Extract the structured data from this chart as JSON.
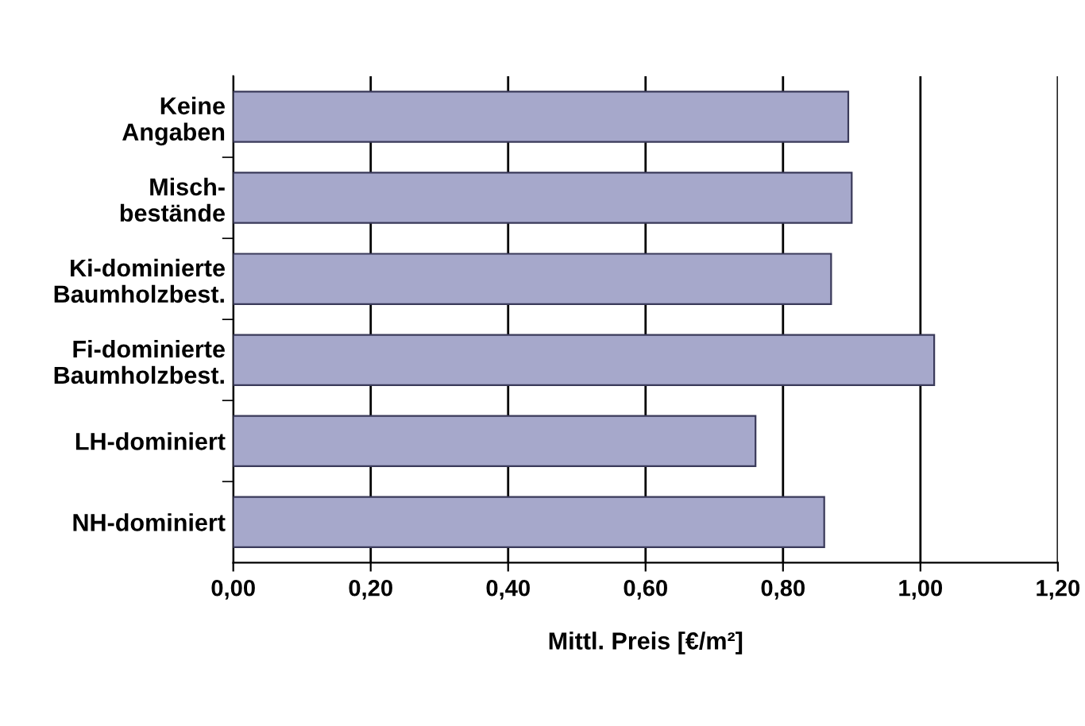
{
  "chart_data": {
    "type": "bar",
    "orientation": "horizontal",
    "xlabel": "Mittl. Preis [€/m²]",
    "categories": [
      "Keine\nAngaben",
      "Misch-\nbestände",
      "Ki-dominierte\nBaumholzbest.",
      "Fi-dominierte\nBaumholzbest.",
      "LH-dominiert",
      "NH-dominiert"
    ],
    "values": [
      0.895,
      0.9,
      0.87,
      1.02,
      0.76,
      0.86
    ],
    "color": "#a6a8cb",
    "xlim": [
      0,
      1.2
    ],
    "xticks": [
      {
        "value": 0,
        "label": "0,00"
      },
      {
        "value": 0.2,
        "label": "0,20"
      },
      {
        "value": 0.4,
        "label": "0,40"
      },
      {
        "value": 0.6,
        "label": "0,60"
      },
      {
        "value": 0.8,
        "label": "0,80"
      },
      {
        "value": 1.0,
        "label": "1,00"
      },
      {
        "value": 1.2,
        "label": "1,20"
      }
    ],
    "grid": "x"
  }
}
